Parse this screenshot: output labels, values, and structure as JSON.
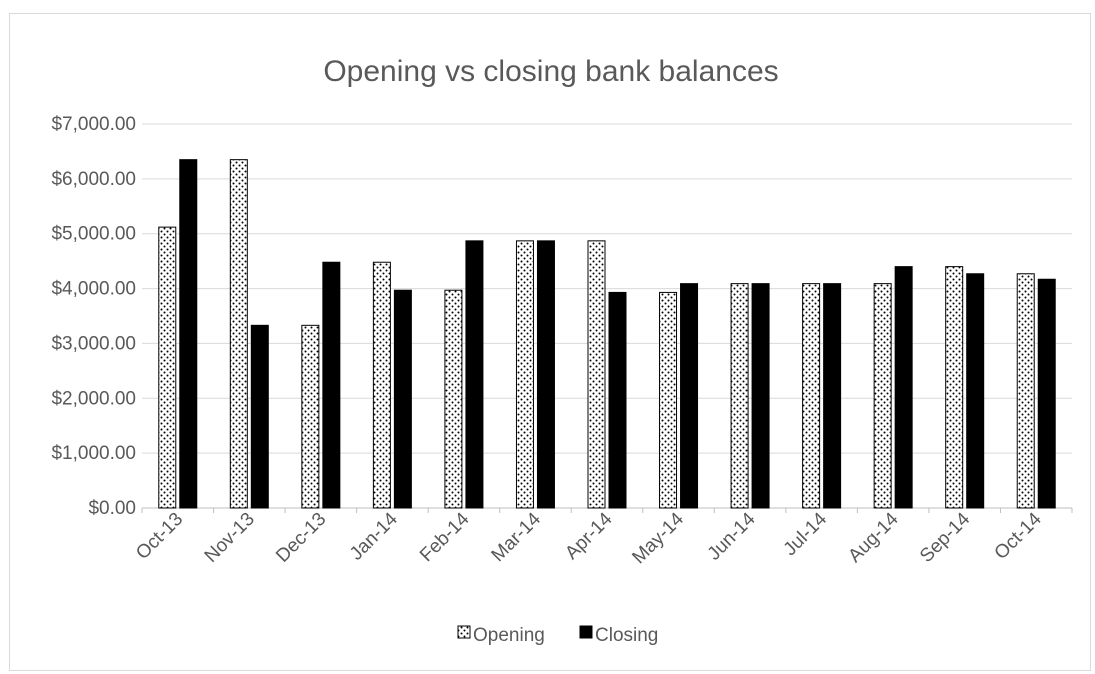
{
  "chart_data": {
    "type": "bar",
    "title": "Opening vs closing bank balances",
    "xlabel": "",
    "ylabel": "",
    "ylim": [
      0,
      7000
    ],
    "yticks": [
      0,
      1000,
      2000,
      3000,
      4000,
      5000,
      6000,
      7000
    ],
    "ytick_labels": [
      "$0.00",
      "$1,000.00",
      "$2,000.00",
      "$3,000.00",
      "$4,000.00",
      "$5,000.00",
      "$6,000.00",
      "$7,000.00"
    ],
    "categories": [
      "Oct-13",
      "Nov-13",
      "Dec-13",
      "Jan-14",
      "Feb-14",
      "Mar-14",
      "Apr-14",
      "May-14",
      "Jun-14",
      "Jul-14",
      "Aug-14",
      "Sep-14",
      "Oct-14"
    ],
    "series": [
      {
        "name": "Opening",
        "pattern": "dotted",
        "color": "#ffffff",
        "values": [
          5120,
          6350,
          3330,
          4480,
          3970,
          4870,
          4870,
          3930,
          4090,
          4090,
          4090,
          4400,
          4270
        ]
      },
      {
        "name": "Closing",
        "pattern": "solid",
        "color": "#000000",
        "values": [
          6350,
          3330,
          4480,
          3970,
          4870,
          4870,
          3930,
          4090,
          4090,
          4090,
          4400,
          4270,
          4170
        ]
      }
    ],
    "grid": true,
    "legend_position": "bottom"
  }
}
